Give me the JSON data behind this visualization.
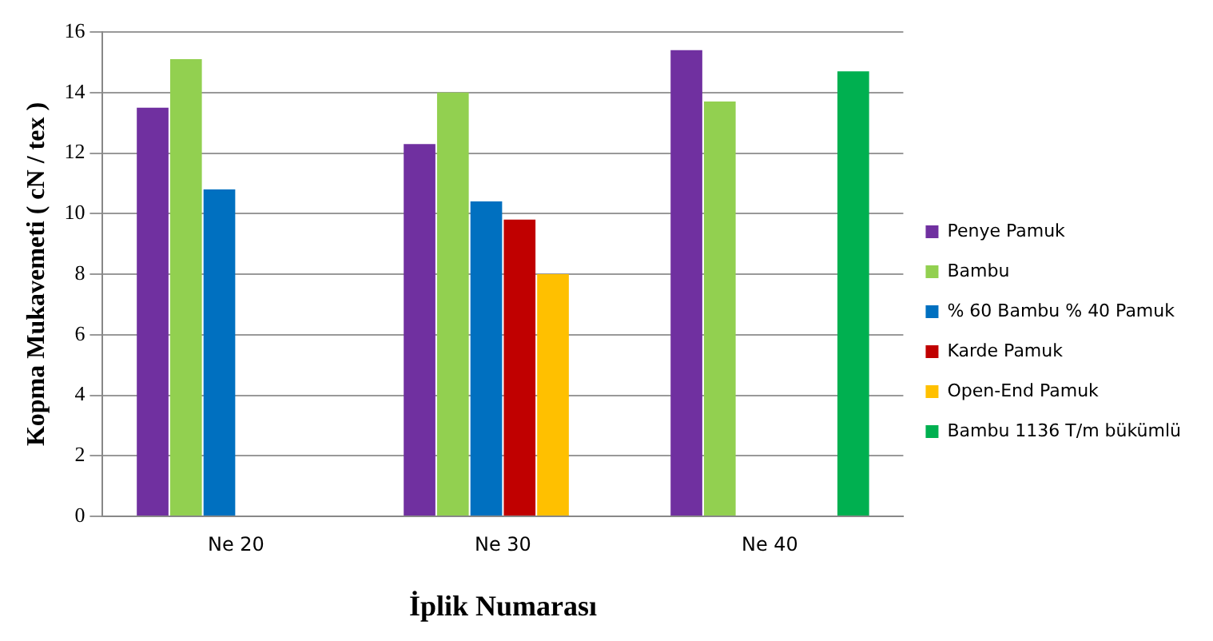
{
  "chart_data": {
    "type": "bar",
    "xlabel": "İplik Numarası",
    "ylabel": "Kopma Mukavemeti ( cN / tex )",
    "categories": [
      "Ne 20",
      "Ne 30",
      "Ne 40"
    ],
    "series": [
      {
        "name": "Penye Pamuk",
        "color": "#7030a0",
        "values": [
          13.5,
          12.3,
          15.4
        ]
      },
      {
        "name": "Bambu",
        "color": "#92d050",
        "values": [
          15.1,
          14.0,
          13.7
        ]
      },
      {
        "name": "% 60 Bambu % 40 Pamuk",
        "color": "#0070c0",
        "values": [
          10.8,
          10.4,
          null
        ]
      },
      {
        "name": "Karde Pamuk",
        "color": "#c00000",
        "values": [
          null,
          9.8,
          null
        ]
      },
      {
        "name": "Open-End Pamuk",
        "color": "#ffc000",
        "values": [
          null,
          8.0,
          null
        ]
      },
      {
        "name": "Bambu 1136 T/m bükümlü",
        "color": "#00b050",
        "values": [
          null,
          null,
          14.7
        ]
      }
    ],
    "ylim": [
      0,
      16
    ],
    "yticks": [
      0,
      2,
      4,
      6,
      8,
      10,
      12,
      14,
      16
    ],
    "grid": "y",
    "legend": "right"
  }
}
